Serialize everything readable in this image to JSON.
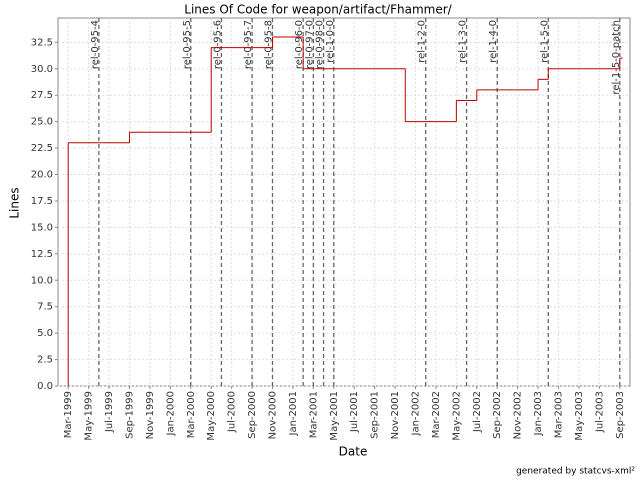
{
  "chart_data": {
    "type": "line",
    "step": true,
    "title": "Lines Of Code for weapon/artifact/Fhammer/",
    "x_label": "Date",
    "y_label": "Lines",
    "footer": "generated by statcvs-xml²",
    "color": "#c00000",
    "grid": true,
    "x": [
      "1999-03",
      "1999-03",
      "1999-09",
      "2000-05",
      "2000-11",
      "2001-02",
      "2001-12",
      "2002-05",
      "2002-07",
      "2003-01",
      "2003-02",
      "2003-09"
    ],
    "values": [
      0,
      23,
      24,
      32,
      33,
      30,
      25,
      27,
      28,
      29,
      30,
      31
    ],
    "xlim": [
      "1999-02",
      "2003-10"
    ],
    "ylim": [
      0,
      34.8
    ],
    "yticks": [
      {
        "value": 0,
        "label": "0.0"
      },
      2.5,
      {
        "value": 5,
        "label": "5.0"
      },
      7.5,
      {
        "value": 10,
        "label": "10.0"
      },
      12.5,
      {
        "value": 15,
        "label": "15.0"
      },
      17.5,
      {
        "value": 20,
        "label": "20.0"
      },
      22.5,
      {
        "value": 25,
        "label": "25.0"
      },
      27.5,
      {
        "value": 30,
        "label": "30.0"
      },
      32.5
    ],
    "xticks": [
      {
        "value": "1999-03",
        "label": "Mar-1999"
      },
      {
        "value": "1999-05",
        "label": "May-1999"
      },
      {
        "value": "1999-07",
        "label": "Jul-1999"
      },
      {
        "value": "1999-09",
        "label": "Sep-1999"
      },
      {
        "value": "1999-11",
        "label": "Nov-1999"
      },
      {
        "value": "2000-01",
        "label": "Jan-2000"
      },
      {
        "value": "2000-03",
        "label": "Mar-2000"
      },
      {
        "value": "2000-05",
        "label": "May-2000"
      },
      {
        "value": "2000-07",
        "label": "Jul-2000"
      },
      {
        "value": "2000-09",
        "label": "Sep-2000"
      },
      {
        "value": "2000-11",
        "label": "Nov-2000"
      },
      {
        "value": "2001-01",
        "label": "Jan-2001"
      },
      {
        "value": "2001-03",
        "label": "Mar-2001"
      },
      {
        "value": "2001-05",
        "label": "May-2001"
      },
      {
        "value": "2001-07",
        "label": "Jul-2001"
      },
      {
        "value": "2001-09",
        "label": "Sep-2001"
      },
      {
        "value": "2001-11",
        "label": "Nov-2001"
      },
      {
        "value": "2002-01",
        "label": "Jan-2002"
      },
      {
        "value": "2002-03",
        "label": "Mar-2002"
      },
      {
        "value": "2002-05",
        "label": "May-2002"
      },
      {
        "value": "2002-07",
        "label": "Jul-2002"
      },
      {
        "value": "2002-09",
        "label": "Sep-2002"
      },
      {
        "value": "2002-11",
        "label": "Nov-2002"
      },
      {
        "value": "2003-01",
        "label": "Jan-2003"
      },
      {
        "value": "2003-03",
        "label": "Mar-2003"
      },
      {
        "value": "2003-05",
        "label": "May-2003"
      },
      {
        "value": "2003-07",
        "label": "Jul-2003"
      },
      {
        "value": "2003-09",
        "label": "Sep-2003"
      }
    ],
    "markers": [
      {
        "x": "1999-06",
        "label": "rel-0-95-4"
      },
      {
        "x": "2000-03",
        "label": "rel-0-95-5"
      },
      {
        "x": "2000-06",
        "label": "rel-0-95-6"
      },
      {
        "x": "2000-09",
        "label": "rel-0-95-7"
      },
      {
        "x": "2000-11",
        "label": "rel-0-95-8"
      },
      {
        "x": "2001-02",
        "label": "rel-0-96-0"
      },
      {
        "x": "2001-03",
        "label": "rel-0-97-0"
      },
      {
        "x": "2001-04",
        "label": "rel-0-98-0"
      },
      {
        "x": "2001-05",
        "label": "rel-1-0-0"
      },
      {
        "x": "2002-02",
        "label": "rel-1-2-0"
      },
      {
        "x": "2002-06",
        "label": "rel-1-3-0"
      },
      {
        "x": "2002-09",
        "label": "rel-1-4-0"
      },
      {
        "x": "2003-02",
        "label": "rel-1-5-0"
      },
      {
        "x": "2003-09",
        "label": "rel-1-5-0-patch"
      }
    ]
  }
}
